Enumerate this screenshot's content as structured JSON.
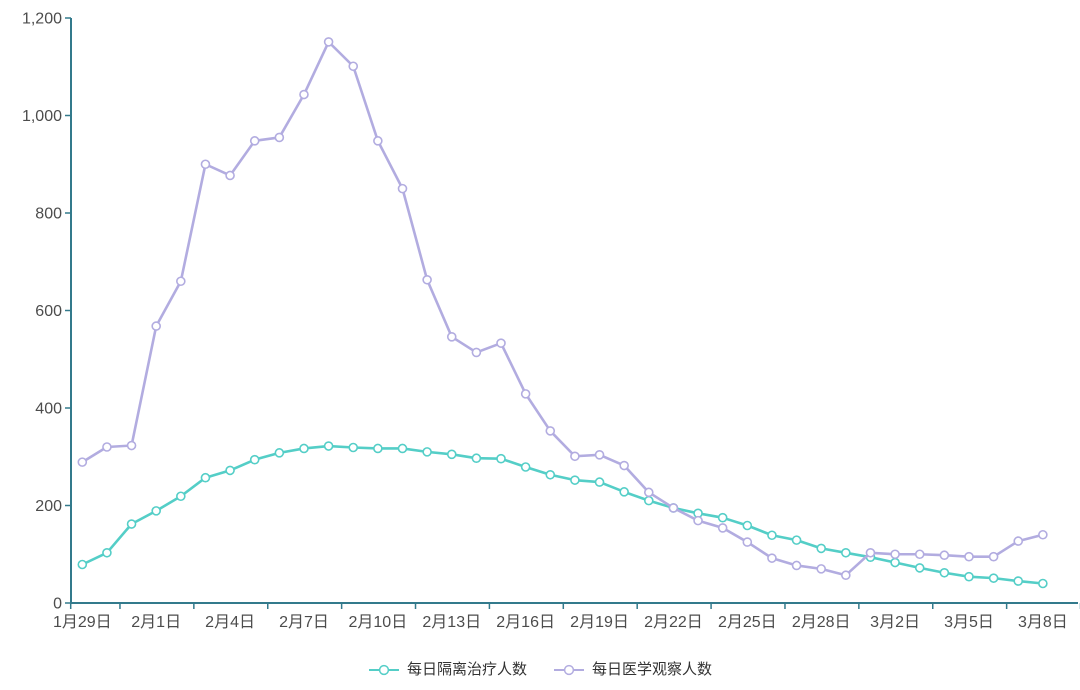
{
  "chart_data": {
    "type": "line",
    "title": "",
    "xlabel": "",
    "ylabel": "",
    "x": [
      "1月29日",
      "1月30日",
      "1月31日",
      "2月1日",
      "2月2日",
      "2月3日",
      "2月4日",
      "2月5日",
      "2月6日",
      "2月7日",
      "2月8日",
      "2月9日",
      "2月10日",
      "2月11日",
      "2月12日",
      "2月13日",
      "2月14日",
      "2月15日",
      "2月16日",
      "2月17日",
      "2月18日",
      "2月19日",
      "2月20日",
      "2月21日",
      "2月22日",
      "2月23日",
      "2月24日",
      "2月25日",
      "2月26日",
      "2月27日",
      "2月28日",
      "2月29日",
      "3月1日",
      "3月2日",
      "3月3日",
      "3月4日",
      "3月5日",
      "3月6日",
      "3月7日",
      "3月8日"
    ],
    "series": [
      {
        "name": "每日隔离治疗人数",
        "color": "#54cec7",
        "values": [
          79,
          103,
          162,
          189,
          219,
          257,
          272,
          294,
          308,
          317,
          322,
          319,
          317,
          317,
          310,
          305,
          297,
          296,
          279,
          263,
          252,
          248,
          228,
          210,
          195,
          184,
          175,
          159,
          139,
          129,
          112,
          103,
          94,
          83,
          72,
          62,
          54,
          51,
          45,
          40
        ]
      },
      {
        "name": "每日医学观察人数",
        "color": "#b2ace0",
        "values": [
          289,
          320,
          323,
          568,
          660,
          900,
          877,
          948,
          955,
          1043,
          1151,
          1101,
          948,
          850,
          663,
          546,
          514,
          533,
          429,
          353,
          301,
          304,
          282,
          227,
          195,
          169,
          154,
          125,
          92,
          77,
          70,
          57,
          103,
          100,
          100,
          98,
          95,
          95,
          127,
          140
        ]
      }
    ],
    "ylim": [
      0,
      1200
    ],
    "yticks": [
      0,
      200,
      400,
      600,
      800,
      1000,
      1200
    ],
    "ytick_labels": [
      "0",
      "200",
      "400",
      "600",
      "800",
      "1,000",
      "1,200"
    ],
    "x_label_every": 3,
    "x_tick_boundaries": [
      0,
      2,
      5,
      8,
      11,
      14,
      17,
      20,
      23,
      26,
      29,
      32,
      35,
      38,
      41
    ],
    "grid": false,
    "legend_position": "bottom",
    "marker": "empty-circle",
    "axis_color": "#337a8c",
    "tick_text_color": "#4c4c4c",
    "background": "#ffffff"
  }
}
